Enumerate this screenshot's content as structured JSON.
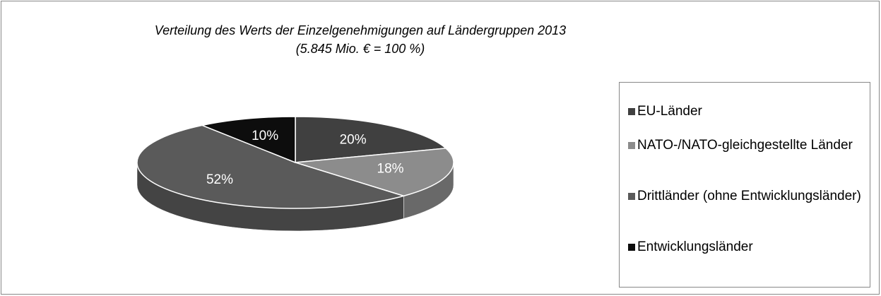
{
  "chart_data": {
    "type": "pie3d",
    "title": "Verteilung des Werts der Einzelgenehmigungen auf Ländergruppen 2013",
    "subtitle": "(5.845 Mio. € = 100 %)",
    "categories": [
      "EU-Länder",
      "NATO-/NATO-gleichgestellte Länder",
      "Drittländer (ohne Entwicklungsländer)",
      "Entwicklungsländer"
    ],
    "values": [
      20,
      18,
      52,
      10
    ],
    "value_labels": [
      "20%",
      "18%",
      "52%",
      "10%"
    ],
    "colors": [
      "#404040",
      "#8c8c8c",
      "#5a5a5a",
      "#0d0d0d"
    ],
    "legend": "right"
  }
}
